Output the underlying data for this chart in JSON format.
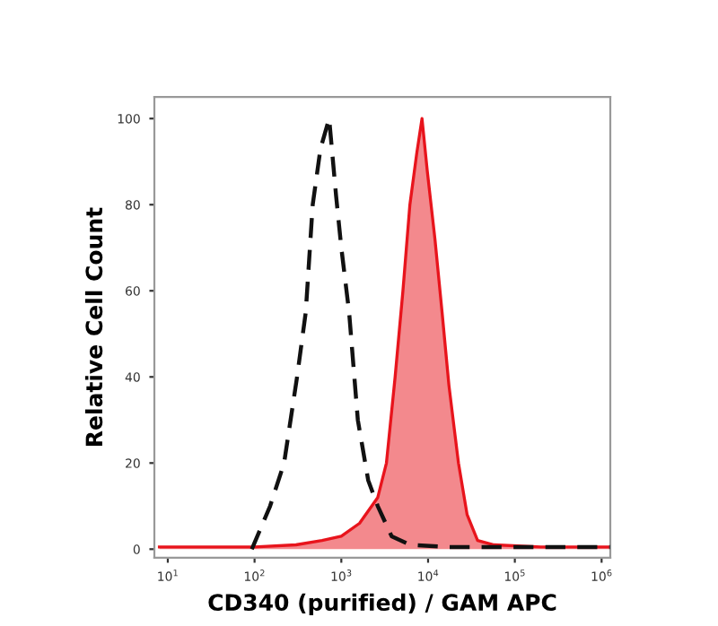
{
  "chart_data": {
    "type": "area",
    "xlabel": "CD340 (purified) / GAM APC",
    "ylabel": "Relative Cell Count",
    "log": "x",
    "grid": false,
    "xlim": [
      7,
      1260000
    ],
    "ylim": [
      -2,
      105
    ],
    "xticks": [
      {
        "value": 10,
        "label": "10$^{1}$"
      },
      {
        "value": 100,
        "label": "10$^{2}$"
      },
      {
        "value": 1000,
        "label": "10$^{3}$"
      },
      {
        "value": 10000,
        "label": "10$^{4}$"
      },
      {
        "value": 100000,
        "label": "10$^{5}$"
      },
      {
        "value": 1000000,
        "label": "10$^{6}$"
      }
    ],
    "yticks": [
      0,
      20,
      40,
      60,
      80,
      100
    ],
    "series": [
      {
        "type": "line",
        "line_style": "dashed",
        "color": "#111111",
        "x": [
          93,
          151,
          219,
          309,
          389,
          468,
          575,
          724,
          871,
          1000,
          1230,
          1550,
          2040,
          2630,
          3800,
          6170,
          17400,
          190000,
          1250000
        ],
        "values": [
          0,
          10,
          20,
          40,
          55,
          80,
          93,
          100,
          82,
          70,
          55,
          30,
          16,
          10,
          3,
          1,
          0.5,
          0.5,
          0.5
        ]
      },
      {
        "line_style": "solid",
        "color": "#e8141c",
        "x": [
          8,
          30,
          100,
          300,
          600,
          1000,
          1620,
          2630,
          3310,
          4170,
          5130,
          6170,
          7410,
          8510,
          9770,
          12000,
          14500,
          17400,
          22400,
          28200,
          37200,
          57500,
          200000,
          1250000
        ],
        "values": [
          0.5,
          0.5,
          0.5,
          1,
          2,
          3,
          6,
          12,
          20,
          40,
          60,
          80,
          92,
          100,
          88,
          72,
          55,
          38,
          20,
          8,
          2,
          1,
          0.5,
          0.5
        ]
      }
    ]
  }
}
